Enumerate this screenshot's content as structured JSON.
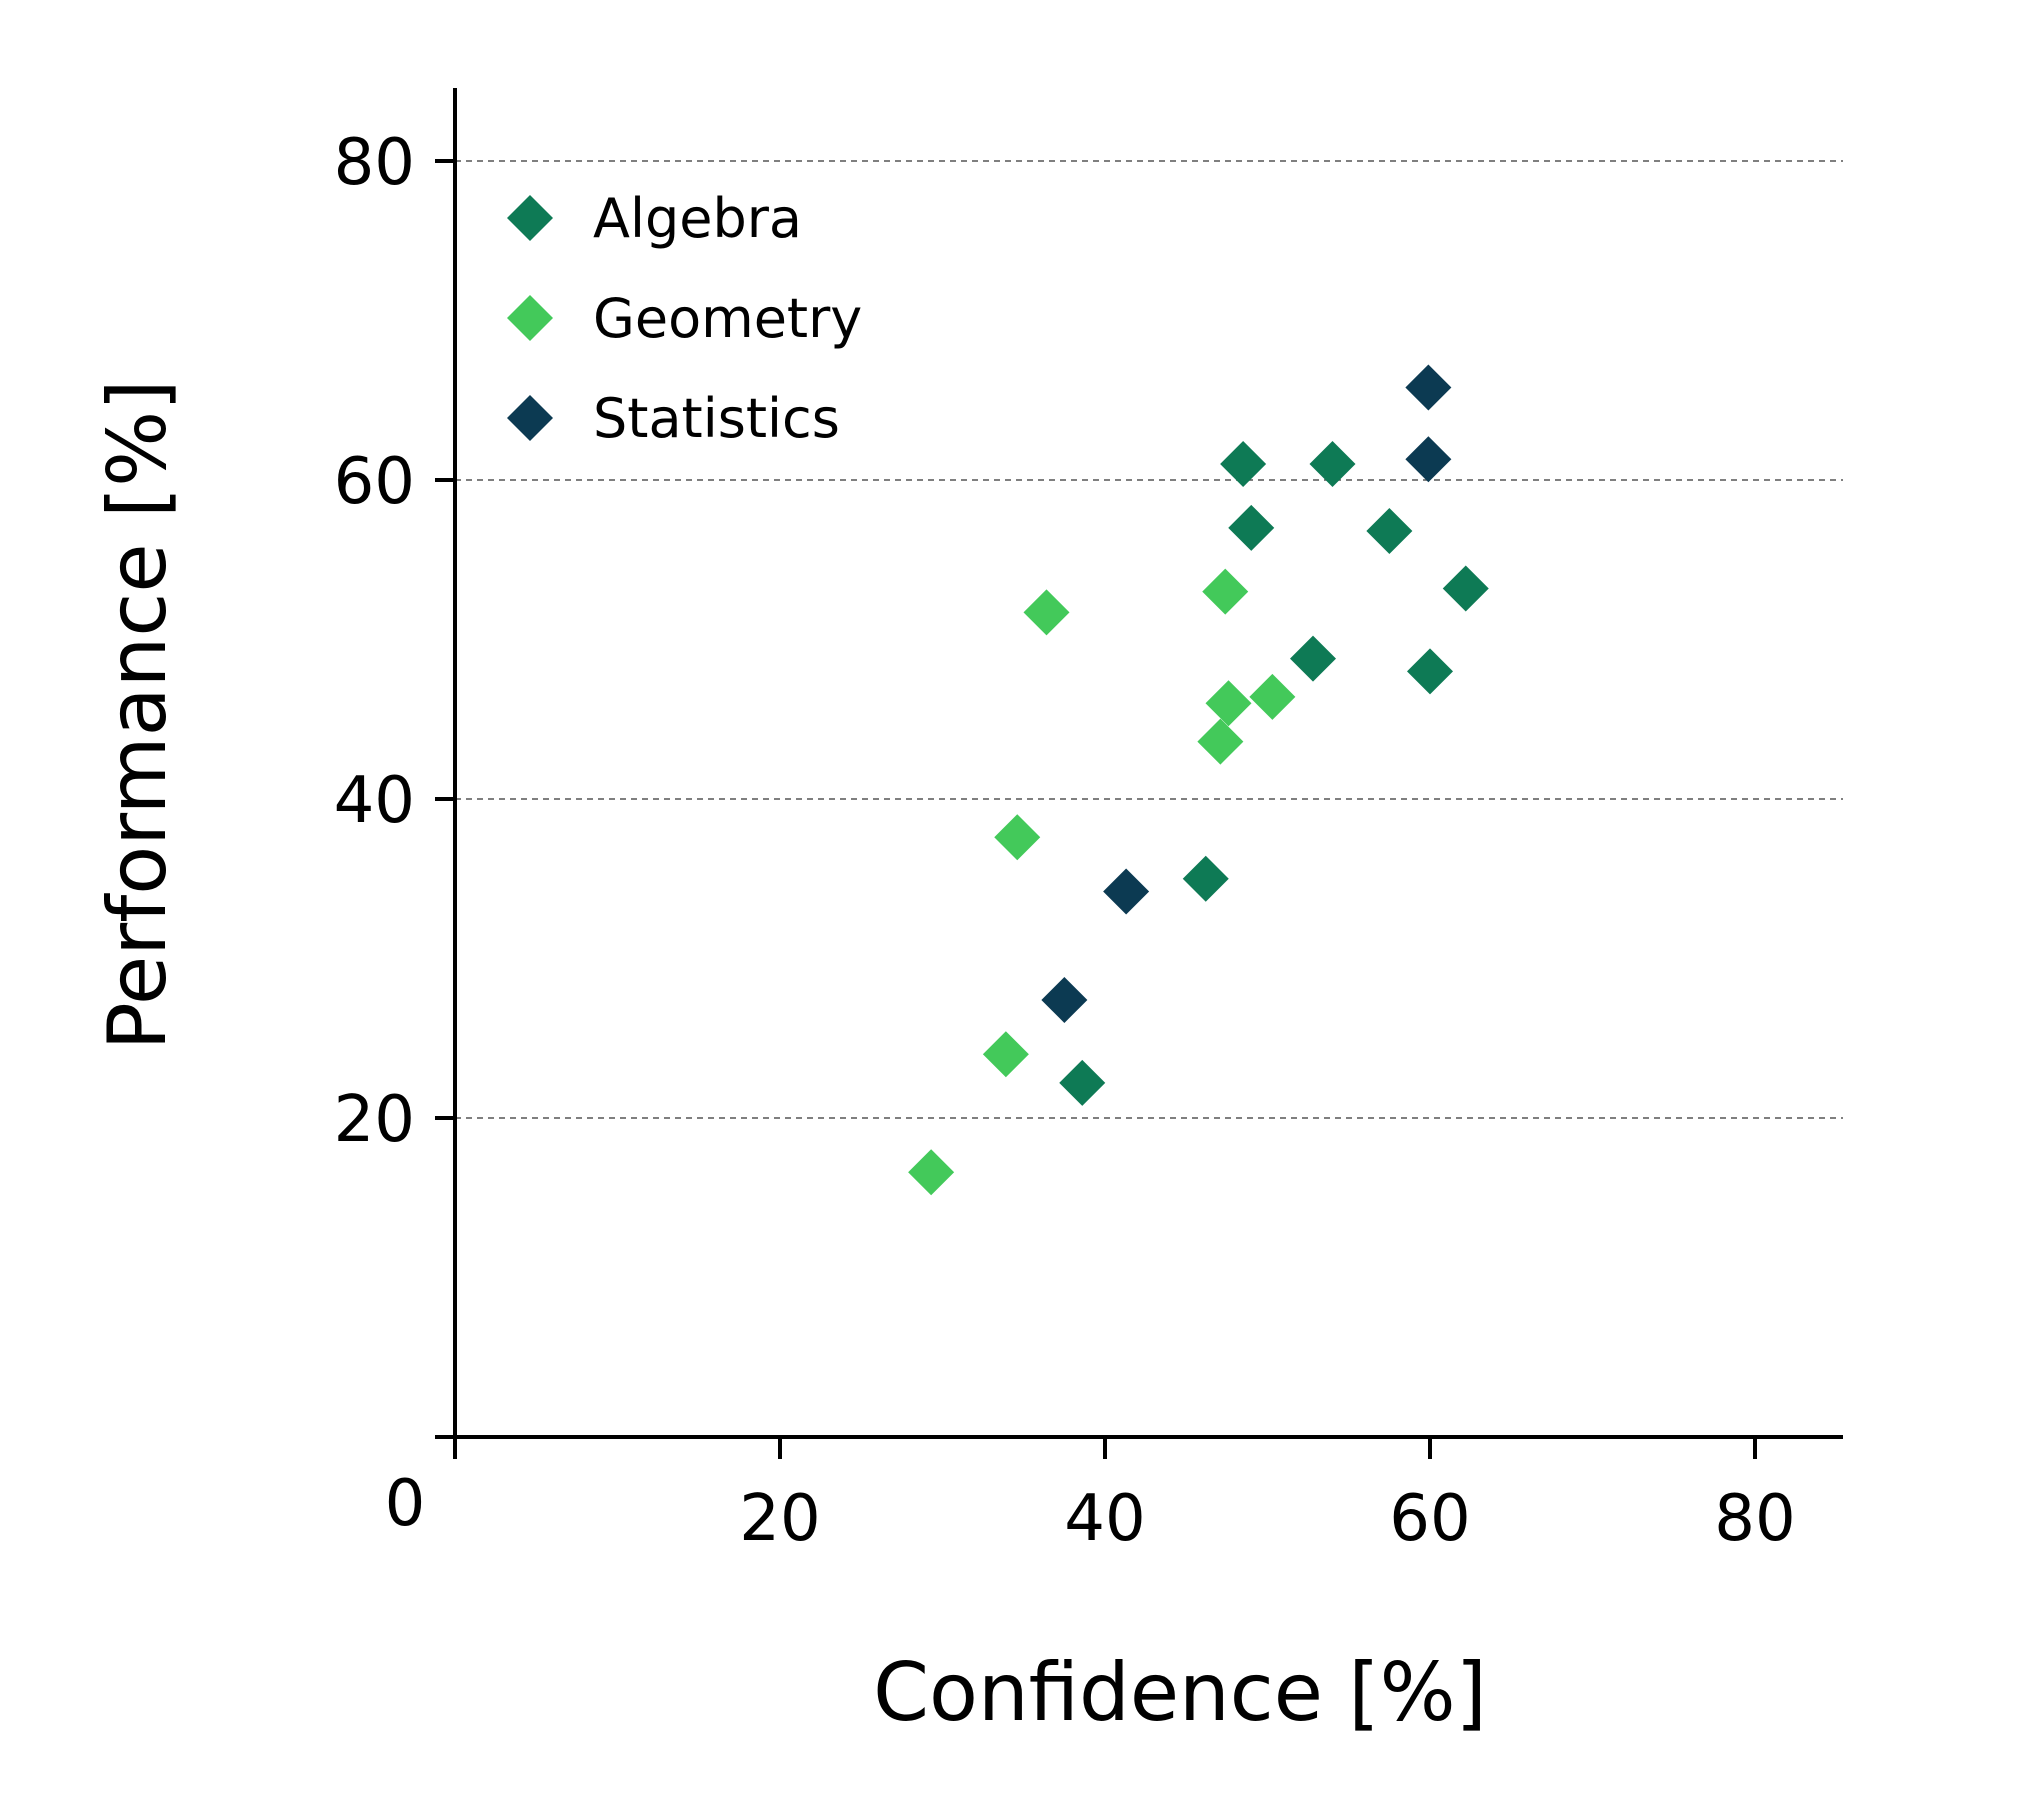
{
  "chart_data": {
    "type": "scatter",
    "xlabel": "Confidence [%]",
    "ylabel": "Performance [%]",
    "xlim": [
      0,
      86
    ],
    "ylim": [
      0,
      84
    ],
    "x_ticks": [
      0,
      20,
      40,
      60,
      80
    ],
    "x_tick_labels": [
      "0",
      "20",
      "40",
      "60",
      "80"
    ],
    "y_ticks": [
      20,
      40,
      60,
      80
    ],
    "y_tick_labels": [
      "20",
      "40",
      "60",
      "80"
    ],
    "grid": "horizontal dashed",
    "legend_position": "top-left",
    "marker": "diamond",
    "series": [
      {
        "name": "Algebra",
        "color": "#0e7a55",
        "points": [
          [
            48.5,
            61.0
          ],
          [
            54.0,
            61.0
          ],
          [
            49.0,
            57.0
          ],
          [
            57.5,
            56.8
          ],
          [
            62.2,
            53.2
          ],
          [
            52.8,
            48.8
          ],
          [
            60.0,
            48.0
          ],
          [
            46.2,
            35.0
          ],
          [
            38.6,
            22.2
          ]
        ]
      },
      {
        "name": "Geometry",
        "color": "#43c95a",
        "points": [
          [
            36.4,
            51.7
          ],
          [
            47.4,
            53.0
          ],
          [
            47.6,
            46.0
          ],
          [
            50.3,
            46.4
          ],
          [
            47.1,
            43.6
          ],
          [
            34.6,
            37.6
          ],
          [
            33.9,
            24.0
          ],
          [
            29.3,
            16.6
          ]
        ]
      },
      {
        "name": "Statistics",
        "color": "#0c3a52",
        "points": [
          [
            59.9,
            65.8
          ],
          [
            59.9,
            61.3
          ],
          [
            41.3,
            34.2
          ],
          [
            37.5,
            27.4
          ]
        ]
      }
    ]
  }
}
